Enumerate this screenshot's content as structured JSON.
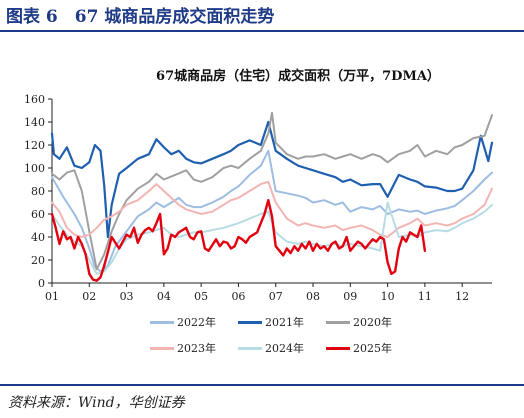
{
  "figure_title": "图表 6　67 城商品房成交面积走势",
  "source": "资料来源：Wind，华创证券",
  "chart_data": {
    "type": "line",
    "title": "67城商品房（住宅）成交面积（万平，7DMA）",
    "xlabel": "",
    "ylabel": "",
    "x_ticks": [
      "01",
      "02",
      "03",
      "04",
      "05",
      "06",
      "07",
      "08",
      "09",
      "10",
      "11",
      "12"
    ],
    "xlim": [
      1,
      12.8
    ],
    "ylim": [
      0,
      160
    ],
    "y_ticks": [
      0,
      20,
      40,
      60,
      80,
      100,
      120,
      140,
      160
    ],
    "grid": false,
    "legend_position": "bottom",
    "series": [
      {
        "name": "2022年",
        "color": "#9dbde2",
        "x": [
          1.0,
          1.3,
          1.6,
          1.8,
          2.0,
          2.15,
          2.3,
          2.5,
          2.7,
          3.0,
          3.3,
          3.6,
          3.8,
          4.0,
          4.2,
          4.4,
          4.6,
          4.8,
          5.0,
          5.3,
          5.6,
          5.8,
          6.0,
          6.3,
          6.6,
          6.8,
          7.0,
          7.3,
          7.6,
          7.8,
          8.0,
          8.3,
          8.6,
          8.8,
          9.0,
          9.3,
          9.6,
          9.8,
          10.0,
          10.3,
          10.6,
          10.8,
          11.0,
          11.3,
          11.6,
          11.8,
          12.0,
          12.3,
          12.6,
          12.8
        ],
        "y": [
          92,
          75,
          60,
          48,
          30,
          14,
          10,
          15,
          32,
          45,
          58,
          64,
          70,
          66,
          70,
          74,
          68,
          66,
          66,
          70,
          75,
          80,
          84,
          94,
          102,
          115,
          80,
          78,
          76,
          74,
          70,
          72,
          68,
          70,
          62,
          66,
          64,
          67,
          60,
          64,
          62,
          63,
          60,
          63,
          65,
          67,
          72,
          80,
          90,
          96
        ]
      },
      {
        "name": "2021年",
        "color": "#1f5fb0",
        "x": [
          1.0,
          1.05,
          1.2,
          1.4,
          1.6,
          1.8,
          2.0,
          2.15,
          2.3,
          2.4,
          2.5,
          2.6,
          2.8,
          3.0,
          3.3,
          3.6,
          3.8,
          4.0,
          4.2,
          4.4,
          4.6,
          4.8,
          5.0,
          5.3,
          5.6,
          5.8,
          6.0,
          6.3,
          6.6,
          6.8,
          7.0,
          7.3,
          7.6,
          7.8,
          8.0,
          8.3,
          8.6,
          8.8,
          9.0,
          9.3,
          9.6,
          9.8,
          10.0,
          10.3,
          10.6,
          10.8,
          11.0,
          11.3,
          11.6,
          11.8,
          12.0,
          12.3,
          12.5,
          12.7,
          12.8
        ],
        "y": [
          130,
          112,
          108,
          118,
          102,
          100,
          105,
          120,
          115,
          85,
          40,
          68,
          95,
          100,
          108,
          112,
          125,
          118,
          112,
          115,
          108,
          105,
          104,
          108,
          112,
          115,
          120,
          124,
          120,
          140,
          115,
          108,
          102,
          100,
          98,
          95,
          92,
          88,
          90,
          85,
          86,
          86,
          75,
          94,
          90,
          88,
          84,
          83,
          80,
          80,
          82,
          98,
          128,
          106,
          122
        ]
      },
      {
        "name": "2020年",
        "color": "#a0a0a0",
        "x": [
          1.0,
          1.2,
          1.4,
          1.6,
          1.8,
          2.0,
          2.2,
          2.4,
          2.6,
          2.8,
          3.0,
          3.3,
          3.6,
          3.8,
          4.0,
          4.3,
          4.6,
          4.8,
          5.0,
          5.3,
          5.6,
          5.8,
          6.0,
          6.3,
          6.6,
          6.8,
          6.9,
          7.0,
          7.3,
          7.6,
          7.8,
          8.0,
          8.3,
          8.6,
          8.8,
          9.0,
          9.3,
          9.6,
          9.8,
          10.0,
          10.3,
          10.6,
          10.8,
          11.0,
          11.3,
          11.6,
          11.8,
          12.0,
          12.3,
          12.6,
          12.8
        ],
        "y": [
          95,
          90,
          96,
          98,
          80,
          45,
          12,
          25,
          45,
          60,
          72,
          82,
          88,
          95,
          90,
          94,
          98,
          90,
          88,
          92,
          100,
          102,
          100,
          108,
          115,
          130,
          148,
          122,
          112,
          108,
          110,
          110,
          112,
          108,
          110,
          112,
          108,
          112,
          110,
          105,
          112,
          115,
          120,
          110,
          115,
          112,
          118,
          120,
          126,
          128,
          146
        ]
      },
      {
        "name": "2023年",
        "color": "#f2b5b2",
        "x": [
          1.0,
          1.2,
          1.4,
          1.6,
          1.8,
          2.0,
          2.2,
          2.4,
          2.6,
          2.8,
          3.0,
          3.3,
          3.6,
          3.8,
          4.0,
          4.2,
          4.4,
          4.6,
          4.8,
          5.0,
          5.3,
          5.6,
          5.8,
          6.0,
          6.3,
          6.6,
          6.8,
          7.0,
          7.3,
          7.6,
          7.8,
          8.0,
          8.3,
          8.6,
          8.8,
          9.0,
          9.3,
          9.6,
          9.8,
          10.0,
          10.3,
          10.6,
          10.8,
          11.0,
          11.3,
          11.6,
          11.8,
          12.0,
          12.3,
          12.6,
          12.8
        ],
        "y": [
          70,
          62,
          48,
          42,
          40,
          42,
          48,
          55,
          58,
          62,
          68,
          72,
          80,
          86,
          80,
          74,
          68,
          64,
          62,
          60,
          62,
          68,
          72,
          74,
          80,
          86,
          88,
          70,
          56,
          50,
          52,
          50,
          48,
          50,
          46,
          48,
          50,
          46,
          42,
          40,
          48,
          52,
          56,
          50,
          52,
          50,
          52,
          56,
          60,
          68,
          82
        ]
      },
      {
        "name": "2024年",
        "color": "#b8dce4",
        "x": [
          1.0,
          1.2,
          1.4,
          1.6,
          1.8,
          2.0,
          2.2,
          2.4,
          2.6,
          2.8,
          3.0,
          3.3,
          3.6,
          3.8,
          4.0,
          4.2,
          4.4,
          4.6,
          4.8,
          5.0,
          5.3,
          5.6,
          5.8,
          6.0,
          6.3,
          6.6,
          6.8,
          7.0,
          7.3,
          7.6,
          7.8,
          8.0,
          8.3,
          8.6,
          8.8,
          9.0,
          9.3,
          9.6,
          9.8,
          10.0,
          10.3,
          10.6,
          10.8,
          11.0,
          11.3,
          11.6,
          11.8,
          12.0,
          12.3,
          12.6,
          12.8
        ],
        "y": [
          60,
          50,
          42,
          36,
          32,
          20,
          8,
          10,
          18,
          30,
          38,
          42,
          44,
          46,
          48,
          42,
          40,
          42,
          44,
          44,
          46,
          48,
          50,
          52,
          56,
          60,
          62,
          44,
          36,
          34,
          36,
          34,
          32,
          34,
          32,
          34,
          32,
          30,
          28,
          70,
          40,
          42,
          40,
          44,
          46,
          45,
          48,
          52,
          56,
          62,
          68
        ]
      },
      {
        "name": "2025年",
        "color": "#e3000f",
        "x": [
          1.0,
          1.1,
          1.2,
          1.3,
          1.4,
          1.5,
          1.6,
          1.7,
          1.8,
          1.9,
          2.0,
          2.1,
          2.2,
          2.3,
          2.4,
          2.5,
          2.6,
          2.7,
          2.8,
          2.9,
          3.0,
          3.1,
          3.2,
          3.3,
          3.4,
          3.5,
          3.6,
          3.7,
          3.8,
          3.9,
          4.0,
          4.1,
          4.2,
          4.3,
          4.4,
          4.5,
          4.6,
          4.7,
          4.8,
          4.9,
          5.0,
          5.1,
          5.2,
          5.3,
          5.4,
          5.5,
          5.6,
          5.7,
          5.8,
          5.9,
          6.0,
          6.1,
          6.2,
          6.3,
          6.4,
          6.5,
          6.6,
          6.7,
          6.8,
          6.9,
          7.0,
          7.1,
          7.2,
          7.3,
          7.4,
          7.5,
          7.6,
          7.7,
          7.8,
          7.9,
          8.0,
          8.1,
          8.2,
          8.3,
          8.4,
          8.5,
          8.6,
          8.7,
          8.8,
          8.9,
          9.0,
          9.1,
          9.2,
          9.3,
          9.4,
          9.5,
          9.6,
          9.7,
          9.8,
          9.9,
          10.0,
          10.1,
          10.2,
          10.3,
          10.4,
          10.5,
          10.6,
          10.7,
          10.8,
          10.9,
          11.0
        ],
        "y": [
          60,
          48,
          34,
          45,
          38,
          40,
          30,
          40,
          34,
          25,
          8,
          3,
          2,
          5,
          15,
          27,
          40,
          35,
          30,
          36,
          42,
          40,
          48,
          35,
          42,
          46,
          48,
          45,
          52,
          60,
          25,
          30,
          42,
          40,
          44,
          46,
          48,
          40,
          38,
          44,
          45,
          30,
          28,
          33,
          38,
          32,
          36,
          35,
          30,
          32,
          40,
          38,
          35,
          40,
          42,
          44,
          52,
          60,
          72,
          58,
          32,
          28,
          24,
          30,
          26,
          32,
          28,
          34,
          30,
          36,
          28,
          34,
          30,
          32,
          28,
          34,
          36,
          30,
          32,
          40,
          28,
          32,
          36,
          34,
          30,
          34,
          38,
          36,
          40,
          38,
          18,
          8,
          10,
          30,
          40,
          36,
          44,
          42,
          40,
          50,
          28
        ]
      }
    ]
  }
}
